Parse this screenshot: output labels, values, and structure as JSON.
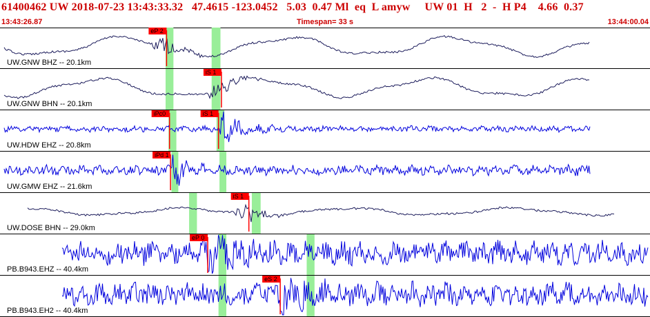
{
  "header": {
    "summary": "61400462 UW 2018-07-23 13:43:33.32   47.4615 -123.0452   5.03  0.47 Ml  eq  L amyw     UW 01  H   2  -  H P4    4.66  0.37",
    "start_time": "13:43:26.87",
    "timespan": "Timespan=  33 s",
    "end_time": "13:44:00.04"
  },
  "colors": {
    "pick": "#ff0000",
    "window": "#99ee99",
    "blue": "#0000dd",
    "dark": "#1a1a5a"
  },
  "traces": [
    {
      "label": "UW.GNW BHZ -- 20.1km",
      "color": "dark",
      "kind": "smooth",
      "picks": [
        {
          "text": "eP 2",
          "t": 8.5
        }
      ],
      "windows": [
        {
          "t1": 8.45,
          "t2": 8.85
        },
        {
          "t1": 10.8,
          "t2": 11.25
        }
      ]
    },
    {
      "label": "UW.GNW BHN -- 20.1km",
      "color": "dark",
      "kind": "smooth",
      "picks": [
        {
          "text": "iS 1",
          "t": 11.3
        }
      ],
      "windows": [
        {
          "t1": 8.45,
          "t2": 8.85
        },
        {
          "t1": 10.8,
          "t2": 11.25
        }
      ]
    },
    {
      "label": "UW.HDW EHZ -- 20.8km",
      "color": "blue",
      "kind": "noisy",
      "picks": [
        {
          "text": "iPc0",
          "t": 8.65
        },
        {
          "text": "iS 1",
          "t": 11.15
        }
      ],
      "windows": [
        {
          "t1": 8.6,
          "t2": 9.0
        },
        {
          "t1": 11.05,
          "t2": 11.45
        }
      ]
    },
    {
      "label": "UW.GMW EHZ -- 21.6km",
      "color": "blue",
      "kind": "noisy",
      "picks": [
        {
          "text": "iPd 1",
          "t": 8.7
        }
      ],
      "windows": [
        {
          "t1": 8.75,
          "t2": 9.1
        },
        {
          "t1": 11.2,
          "t2": 11.55
        }
      ]
    },
    {
      "label": "UW.DOSE BHN -- 29.0km",
      "color": "dark",
      "kind": "smooth",
      "picks": [
        {
          "text": "iS 1",
          "t": 12.7
        }
      ],
      "windows": [
        {
          "t1": 9.65,
          "t2": 10.05
        },
        {
          "t1": 12.85,
          "t2": 13.3
        }
      ]
    },
    {
      "label": "PB.B943.EHZ -- 40.4km",
      "color": "blue",
      "kind": "noisy",
      "picks": [
        {
          "text": "eP 0",
          "t": 10.6
        }
      ],
      "windows": [
        {
          "t1": 11.15,
          "t2": 11.55
        },
        {
          "t1": 15.65,
          "t2": 16.05
        }
      ]
    },
    {
      "label": "PB.B943.EH2 -- 40.4km",
      "color": "blue",
      "kind": "noisy",
      "picks": [
        {
          "text": "eS 2",
          "t": 14.3
        }
      ],
      "windows": [
        {
          "t1": 11.15,
          "t2": 11.55
        },
        {
          "t1": 15.65,
          "t2": 16.05
        }
      ]
    }
  ]
}
